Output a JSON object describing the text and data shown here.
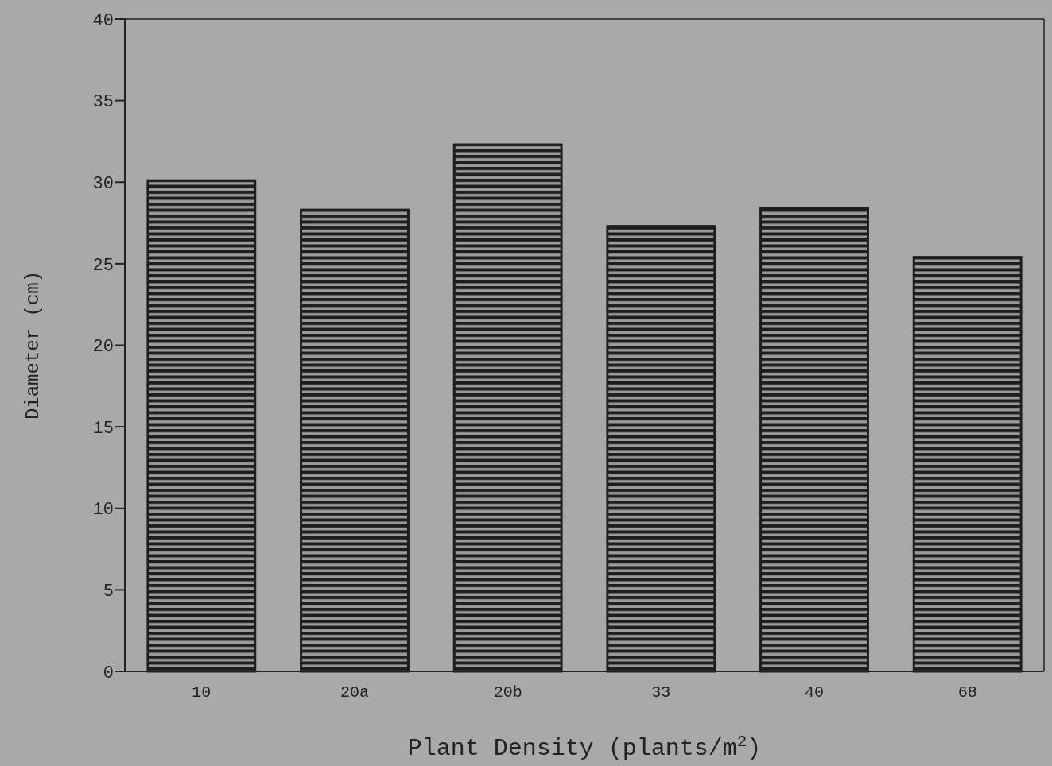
{
  "chart_data": {
    "type": "bar",
    "xlabel": "Plant Density (plants/m$^{2}$)",
    "ylabel": "Diameter (cm)",
    "categories": [
      "10",
      "20a",
      "20b",
      "33",
      "40",
      "68"
    ],
    "values": [
      30.1,
      28.3,
      32.3,
      27.3,
      28.4,
      25.4
    ],
    "color": "#1e1e1e",
    "ylim": [
      0,
      40
    ],
    "yticks": [
      0,
      5,
      10,
      15,
      20,
      25,
      30,
      35,
      40
    ],
    "grid": false
  }
}
